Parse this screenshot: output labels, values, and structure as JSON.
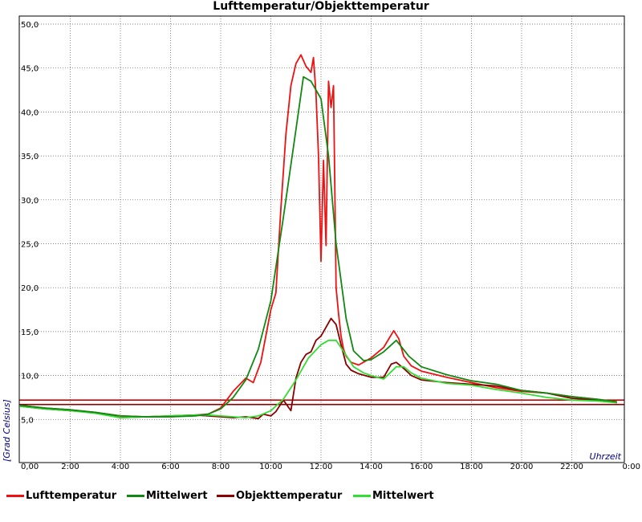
{
  "chart_data": {
    "type": "line",
    "title": "Lufttemperatur/Objekttemperatur",
    "xlabel": "Uhrzeit",
    "ylabel": "[Grad Celsius]",
    "xlim": [
      0,
      24
    ],
    "ylim": [
      0,
      50
    ],
    "grid": true,
    "legend_position": "bottom",
    "x_tick_labels": [
      "0,00",
      "2:00",
      "4:00",
      "6:00",
      "8:00",
      "10:00",
      "12:00",
      "14:00",
      "16:00",
      "18:00",
      "20:00",
      "22:00",
      "0:00"
    ],
    "y_tick_labels": [
      "5,0",
      "10,0",
      "15,0",
      "20,0",
      "25,0",
      "30,0",
      "35,0",
      "40,0",
      "45,0",
      "50,0"
    ],
    "y_tick_values": [
      5,
      10,
      15,
      20,
      25,
      30,
      35,
      40,
      45,
      50
    ],
    "reference_lines": [
      {
        "value": 7.2,
        "color": "#cc0000"
      },
      {
        "value": 6.7,
        "color": "#880000"
      }
    ],
    "series": [
      {
        "name": "Lufttemperatur",
        "color": "#ee1111",
        "x": [
          0,
          1,
          2,
          3,
          4,
          5,
          6,
          7,
          7.5,
          8,
          8.5,
          9,
          9.3,
          9.6,
          10,
          10.2,
          10.4,
          10.6,
          10.8,
          11,
          11.2,
          11.4,
          11.6,
          11.7,
          11.8,
          11.9,
          12,
          12.1,
          12.2,
          12.3,
          12.4,
          12.5,
          12.6,
          12.7,
          12.8,
          12.9,
          13,
          13.2,
          13.5,
          14,
          14.5,
          14.9,
          15.1,
          15.3,
          15.6,
          16,
          17,
          18,
          19,
          20,
          21,
          22,
          23,
          23.8
        ],
        "y": [
          6.6,
          6.3,
          6.1,
          5.8,
          5.4,
          5.3,
          5.3,
          5.5,
          5.6,
          6.3,
          8.2,
          9.7,
          9.2,
          11.5,
          17.5,
          19.4,
          29,
          37.5,
          43,
          45.5,
          46.5,
          45.2,
          44.5,
          46.2,
          42,
          35,
          23,
          34.5,
          24.8,
          43.5,
          40.5,
          43,
          20,
          17,
          14.5,
          13,
          12.2,
          11.5,
          11.2,
          12,
          13.2,
          15.1,
          14.2,
          12.2,
          11.1,
          10.5,
          9.8,
          9.2,
          8.6,
          8.2,
          8,
          7.6,
          7.3,
          7
        ]
      },
      {
        "name": "Mittelwert",
        "color": "#118811",
        "x": [
          0,
          1,
          2,
          3,
          4,
          5,
          6,
          7,
          7.5,
          8,
          8.5,
          9,
          9.5,
          10,
          10.5,
          11,
          11.3,
          11.6,
          12,
          12.3,
          12.6,
          13,
          13.3,
          13.7,
          14,
          14.5,
          15,
          15.5,
          16,
          17,
          18,
          19,
          20,
          21,
          22,
          23,
          23.8
        ],
        "y": [
          6.6,
          6.3,
          6.1,
          5.8,
          5.4,
          5.3,
          5.3,
          5.4,
          5.6,
          6.2,
          7.5,
          9.5,
          13,
          18.5,
          28,
          38,
          44,
          43.5,
          41.5,
          35,
          25,
          16.5,
          12.8,
          11.7,
          11.8,
          12.7,
          14,
          12.2,
          11,
          10.1,
          9.4,
          9,
          8.3,
          8,
          7.6,
          7.3,
          7
        ]
      },
      {
        "name": "Objekttemperatur",
        "color": "#880000",
        "x": [
          0,
          1,
          2,
          3,
          4,
          5,
          6,
          7,
          7.5,
          8,
          8.5,
          9,
          9.5,
          9.7,
          10,
          10.2,
          10.5,
          10.8,
          11,
          11.2,
          11.4,
          11.6,
          11.8,
          12,
          12.2,
          12.4,
          12.6,
          12.8,
          13,
          13.2,
          13.5,
          14,
          14.5,
          14.8,
          15,
          15.3,
          15.6,
          16,
          17,
          18,
          19,
          20,
          21,
          22,
          23,
          23.8
        ],
        "y": [
          6.5,
          6.2,
          6,
          5.8,
          5.2,
          5.3,
          5.4,
          5.5,
          5.4,
          5.3,
          5.2,
          5.3,
          5.1,
          5.6,
          5.4,
          5.9,
          7.2,
          6,
          9.7,
          11.5,
          12.4,
          12.7,
          14,
          14.5,
          15.5,
          16.5,
          15.8,
          13.5,
          11.3,
          10.6,
          10.2,
          9.8,
          9.8,
          11.3,
          11.5,
          10.8,
          10,
          9.5,
          9.2,
          9,
          8.8,
          8.3,
          8,
          7.4,
          7.2,
          6.9
        ]
      },
      {
        "name": "Mittelwert",
        "color": "#33dd33",
        "x": [
          0,
          1,
          2,
          3,
          4,
          5,
          6,
          7,
          7.5,
          8,
          8.5,
          9,
          9.5,
          10,
          10.5,
          11,
          11.5,
          12,
          12.3,
          12.6,
          13,
          13.3,
          13.7,
          14,
          14.5,
          15,
          15.3,
          15.6,
          16,
          17,
          18,
          19,
          20,
          21,
          22,
          23,
          23.8
        ],
        "y": [
          6.5,
          6.2,
          6,
          5.7,
          5.2,
          5.3,
          5.4,
          5.5,
          5.5,
          5.4,
          5.3,
          5.2,
          5.4,
          6,
          7.3,
          9.5,
          12,
          13.5,
          14,
          14,
          12.3,
          11,
          10.3,
          10,
          9.6,
          11,
          11,
          10.3,
          9.7,
          9.1,
          8.9,
          8.4,
          8,
          7.5,
          7.2,
          7.1,
          6.9
        ]
      }
    ]
  }
}
